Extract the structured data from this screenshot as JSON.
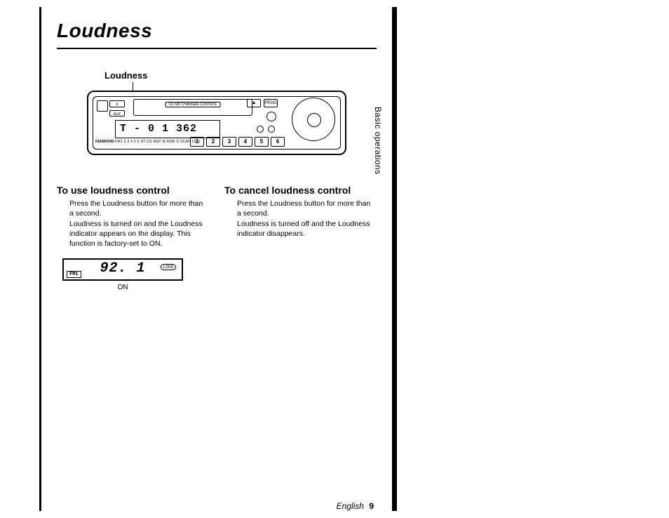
{
  "page": {
    "title": "Loudness",
    "section_tab": "Basic operations",
    "footer_language": "English",
    "footer_page": "9"
  },
  "callout": {
    "label": "Loudness"
  },
  "radio": {
    "tape_label": "CD·MD CHANGER CONTROL",
    "lcd_main": "T - 0 1  362",
    "lcd_strip": "FM1 2 3 4 5 6 ST CD REP M.RDM D.SCAN LD 6",
    "brand": "KENWOOD",
    "buttons": {
      "prog": "PROG",
      "loud_key": "∧",
      "aux": "AUX"
    },
    "presets": [
      "1",
      "2",
      "3",
      "4",
      "5",
      "6"
    ]
  },
  "left": {
    "heading": "To use loudness control",
    "p1": "Press the Loudness button for more than a second.",
    "p2": "Loudness is turned on and the Loudness indicator appears on the display. This function is factory-set to ON."
  },
  "right": {
    "heading": "To cancel loudness control",
    "p1": "Press the Loudness button for more than a second.",
    "p2": "Loudness is turned off and the Loudness indicator disappears."
  },
  "mini_lcd": {
    "band": "FM1",
    "freq": "92. 1",
    "tag": "LOUD",
    "state": "ON"
  },
  "colors": {
    "ink": "#000000",
    "paper": "#ffffff"
  }
}
